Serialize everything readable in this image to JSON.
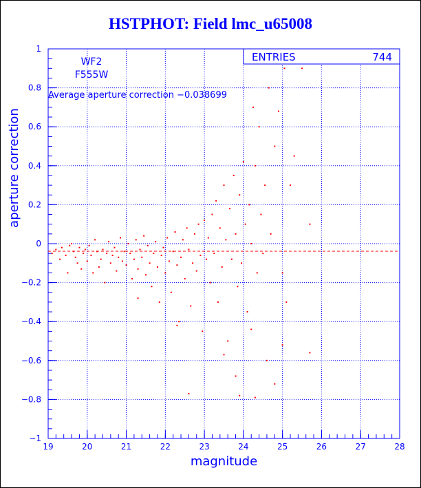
{
  "title": "HSTPHOT: Field lmc_u65008",
  "colors": {
    "axis": "#0000ff",
    "points": "#ff0000",
    "title": "#0000ff"
  },
  "chart_data": {
    "type": "scatter",
    "title": "HSTPHOT: Field lmc_u65008",
    "xlabel": "magnitude",
    "ylabel": "aperture correction",
    "xlim": [
      19,
      28
    ],
    "ylim": [
      -1,
      1
    ],
    "xticks": [
      "19",
      "20",
      "21",
      "22",
      "23",
      "24",
      "25",
      "26",
      "27",
      "28"
    ],
    "yticks": [
      "-1",
      "-0.8",
      "-0.6",
      "-0.4",
      "-0.2",
      "0",
      "0.2",
      "0.4",
      "0.6",
      "0.8",
      "1"
    ],
    "grid": true,
    "chip": "WF2",
    "filter": "F555W",
    "average_label": "Average aperture correction -0.038699",
    "average_value": -0.038699,
    "stats": {
      "label": "ENTRIES",
      "value": "744"
    },
    "points": [
      [
        19.1,
        -0.05
      ],
      [
        19.2,
        -0.03
      ],
      [
        19.3,
        -0.08
      ],
      [
        19.35,
        -0.02
      ],
      [
        19.45,
        -0.06
      ],
      [
        19.5,
        -0.15
      ],
      [
        19.55,
        -0.01
      ],
      [
        19.6,
        0.0
      ],
      [
        19.65,
        -0.04
      ],
      [
        19.7,
        -0.07
      ],
      [
        19.75,
        -0.1
      ],
      [
        19.8,
        -0.02
      ],
      [
        19.85,
        -0.13
      ],
      [
        19.9,
        -0.05
      ],
      [
        19.95,
        -0.03
      ],
      [
        20.0,
        -0.09
      ],
      [
        20.05,
        -0.01
      ],
      [
        20.1,
        -0.06
      ],
      [
        20.15,
        -0.15
      ],
      [
        20.2,
        0.02
      ],
      [
        20.25,
        -0.04
      ],
      [
        20.3,
        -0.12
      ],
      [
        20.35,
        -0.08
      ],
      [
        20.4,
        -0.03
      ],
      [
        20.45,
        -0.2
      ],
      [
        20.5,
        -0.05
      ],
      [
        20.55,
        0.01
      ],
      [
        20.6,
        -0.1
      ],
      [
        20.65,
        -0.06
      ],
      [
        20.7,
        -0.02
      ],
      [
        20.75,
        -0.14
      ],
      [
        20.8,
        -0.07
      ],
      [
        20.85,
        0.03
      ],
      [
        20.9,
        -0.09
      ],
      [
        20.95,
        -0.04
      ],
      [
        21.0,
        -0.11
      ],
      [
        21.05,
        0.0
      ],
      [
        21.1,
        -0.05
      ],
      [
        21.15,
        -0.18
      ],
      [
        21.2,
        -0.08
      ],
      [
        21.25,
        0.02
      ],
      [
        21.3,
        -0.13
      ],
      [
        21.35,
        -0.03
      ],
      [
        21.4,
        -0.07
      ],
      [
        21.45,
        0.04
      ],
      [
        21.5,
        -0.16
      ],
      [
        21.55,
        -0.01
      ],
      [
        21.6,
        -0.1
      ],
      [
        21.65,
        -0.22
      ],
      [
        21.7,
        -0.05
      ],
      [
        21.75,
        0.01
      ],
      [
        21.8,
        -0.12
      ],
      [
        21.85,
        -0.3
      ],
      [
        21.9,
        -0.06
      ],
      [
        21.95,
        -0.02
      ],
      [
        22.0,
        -0.15
      ],
      [
        22.05,
        0.03
      ],
      [
        22.1,
        -0.09
      ],
      [
        22.15,
        -0.25
      ],
      [
        22.2,
        -0.04
      ],
      [
        22.25,
        0.06
      ],
      [
        22.3,
        -0.11
      ],
      [
        22.35,
        -0.4
      ],
      [
        22.4,
        -0.07
      ],
      [
        22.45,
        0.02
      ],
      [
        22.5,
        -0.18
      ],
      [
        22.55,
        0.08
      ],
      [
        22.6,
        -0.03
      ],
      [
        22.65,
        -0.32
      ],
      [
        22.7,
        -0.1
      ],
      [
        22.75,
        0.05
      ],
      [
        22.8,
        -0.14
      ],
      [
        22.85,
        0.1
      ],
      [
        22.9,
        -0.06
      ],
      [
        22.95,
        -0.45
      ],
      [
        23.0,
        0.12
      ],
      [
        23.05,
        -0.08
      ],
      [
        23.1,
        0.03
      ],
      [
        23.15,
        -0.2
      ],
      [
        23.2,
        0.15
      ],
      [
        23.25,
        -0.05
      ],
      [
        23.3,
        0.22
      ],
      [
        23.35,
        -0.3
      ],
      [
        23.4,
        0.08
      ],
      [
        23.45,
        -0.12
      ],
      [
        23.5,
        0.3
      ],
      [
        23.55,
        0.02
      ],
      [
        23.6,
        -0.5
      ],
      [
        23.65,
        0.18
      ],
      [
        23.7,
        -0.08
      ],
      [
        23.75,
        0.35
      ],
      [
        23.8,
        0.05
      ],
      [
        23.85,
        -0.22
      ],
      [
        23.9,
        0.25
      ],
      [
        23.95,
        -0.1
      ],
      [
        24.0,
        0.42
      ],
      [
        24.05,
        0.1
      ],
      [
        24.1,
        -0.35
      ],
      [
        24.15,
        0.2
      ],
      [
        24.2,
        0.0
      ],
      [
        24.25,
        0.7
      ],
      [
        24.3,
        0.4
      ],
      [
        24.35,
        -0.15
      ],
      [
        24.4,
        0.6
      ],
      [
        24.45,
        0.15
      ],
      [
        24.5,
        -0.05
      ],
      [
        24.55,
        0.3
      ],
      [
        24.6,
        -0.6
      ],
      [
        24.65,
        0.8
      ],
      [
        24.7,
        0.05
      ],
      [
        24.8,
        0.5
      ],
      [
        24.9,
        0.68
      ],
      [
        25.0,
        -0.15
      ],
      [
        25.05,
        0.9
      ],
      [
        25.1,
        -0.3
      ],
      [
        25.2,
        0.3
      ],
      [
        25.3,
        0.45
      ],
      [
        25.5,
        0.9
      ],
      [
        25.7,
        0.1
      ],
      [
        25.7,
        -0.56
      ],
      [
        24.3,
        -0.79
      ],
      [
        23.9,
        -0.78
      ],
      [
        23.8,
        -0.68
      ],
      [
        23.5,
        -0.57
      ],
      [
        22.6,
        -0.77
      ],
      [
        24.8,
        -0.72
      ],
      [
        25.0,
        -0.52
      ],
      [
        24.2,
        -0.44
      ],
      [
        22.3,
        -0.42
      ],
      [
        21.3,
        -0.28
      ]
    ]
  }
}
